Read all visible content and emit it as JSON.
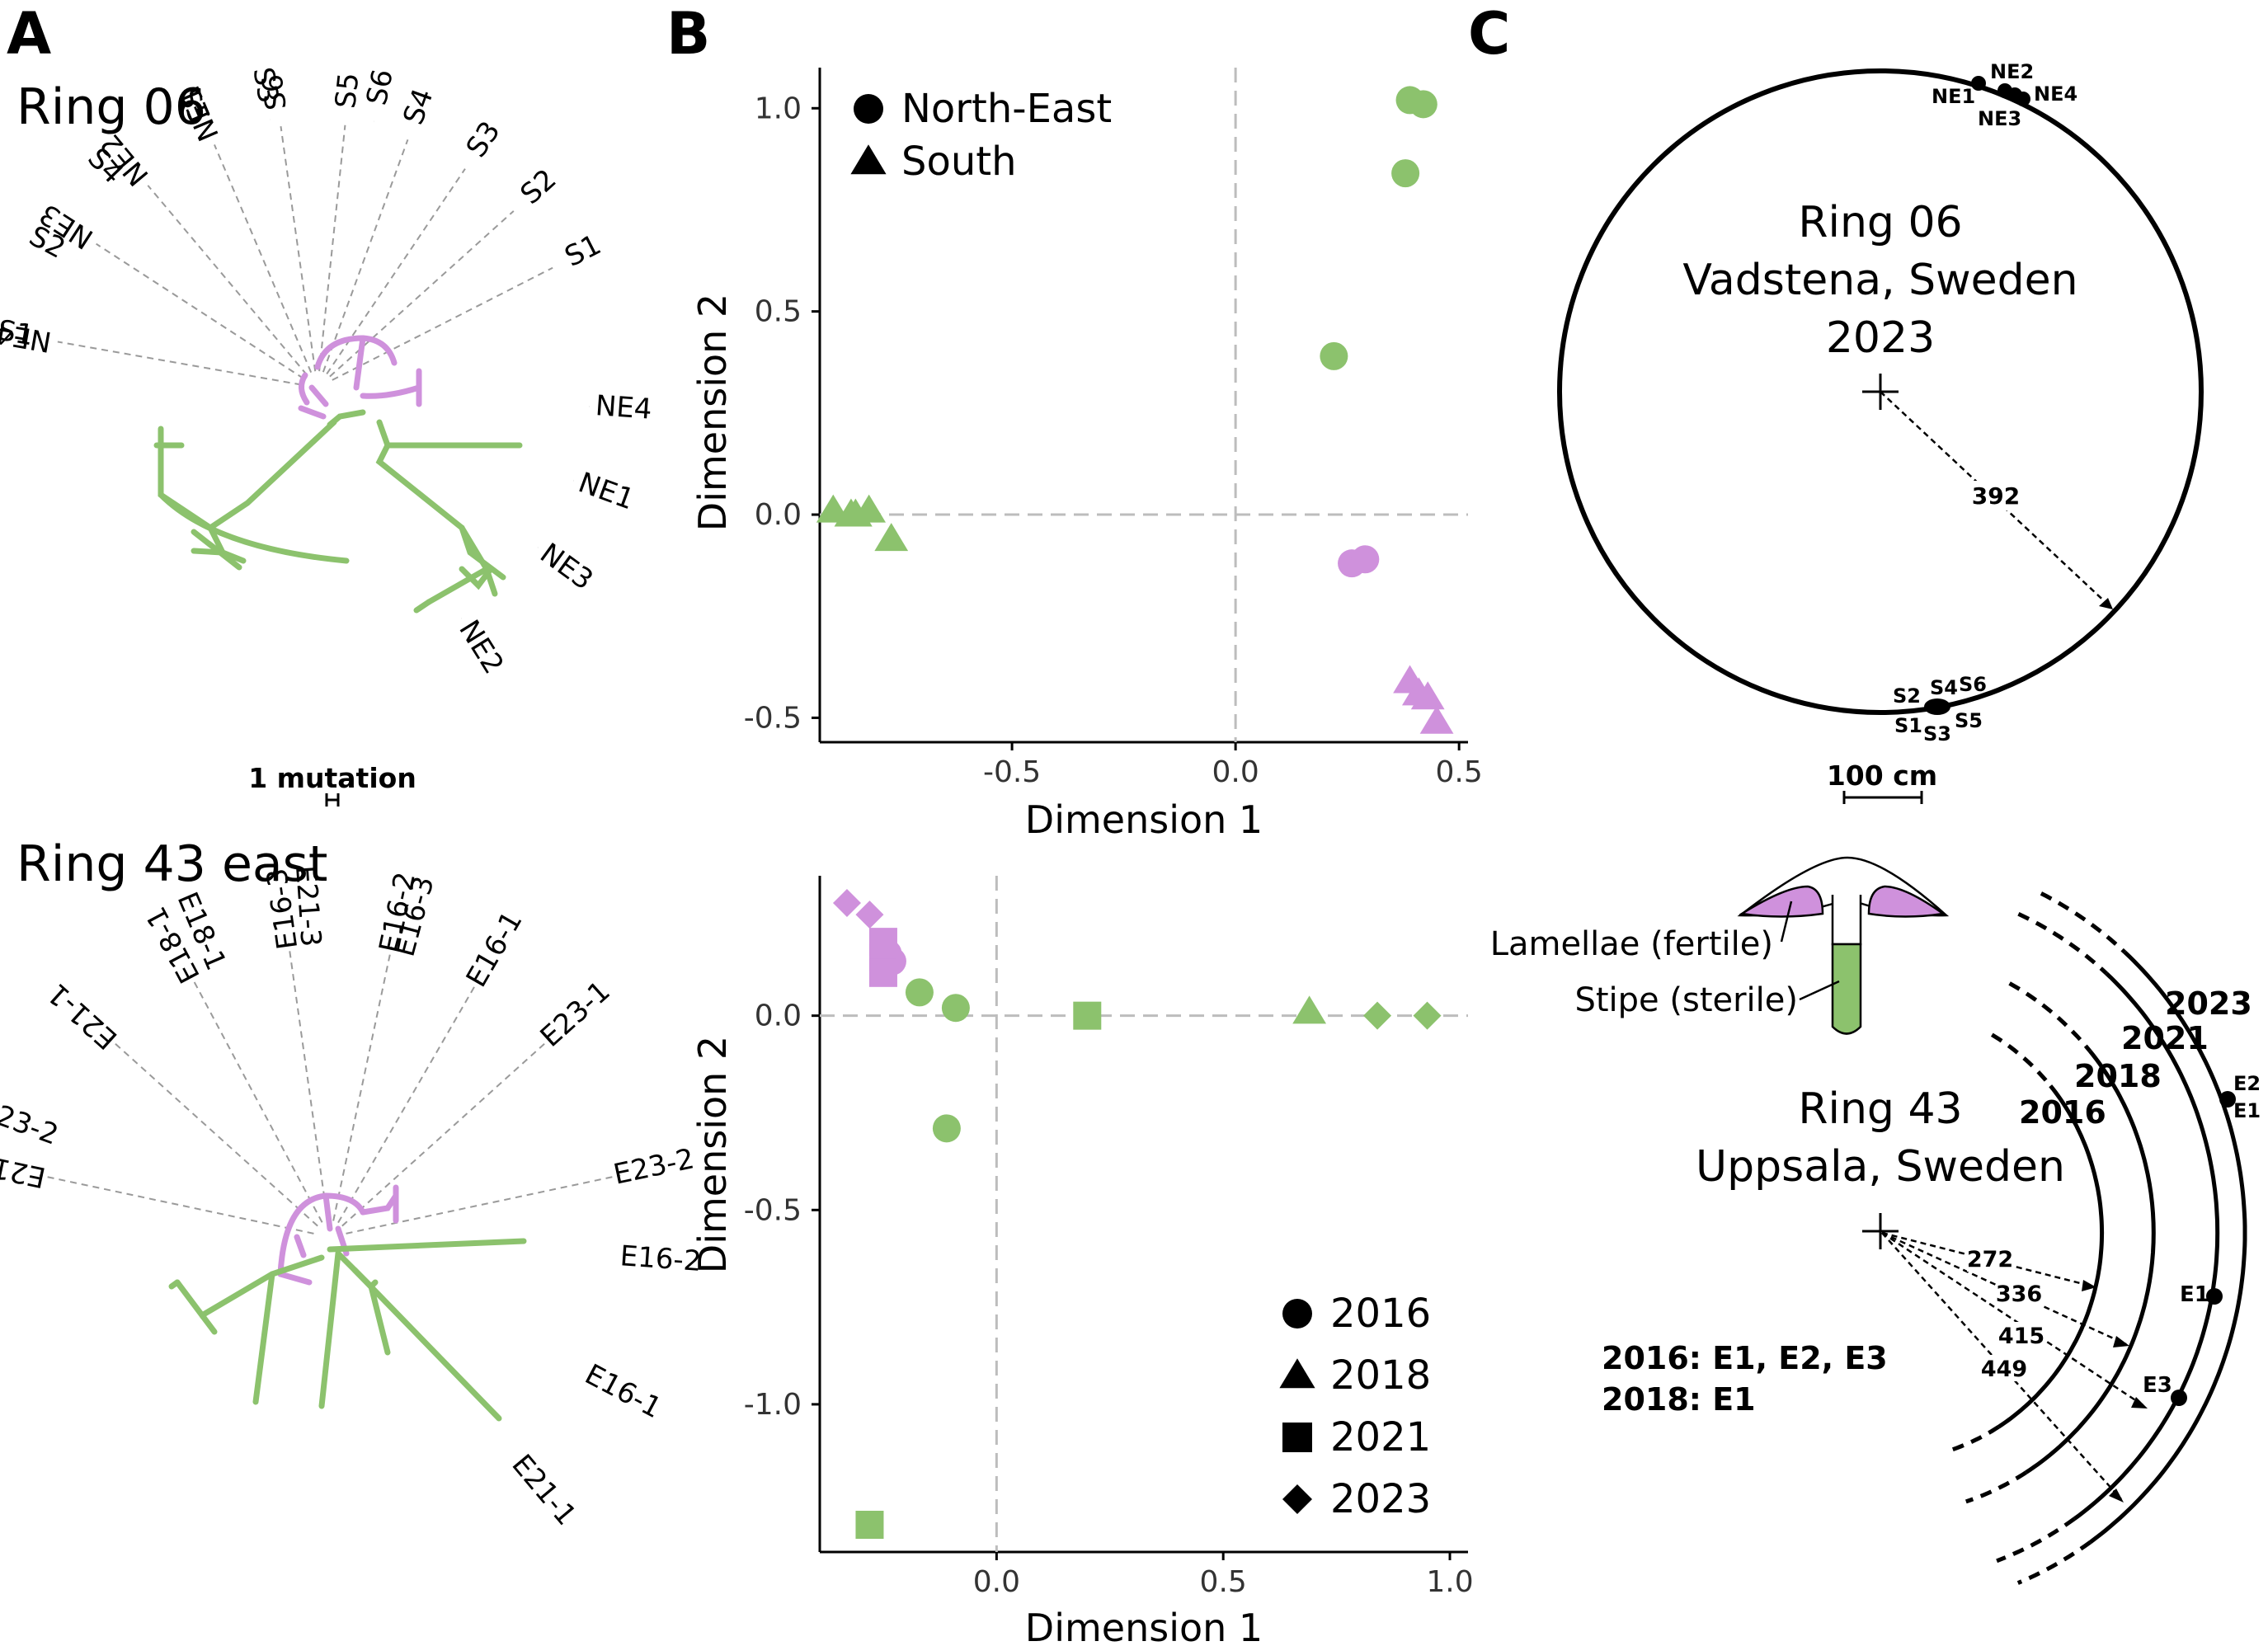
{
  "panel_letters": {
    "a": "A",
    "b": "B",
    "c": "C"
  },
  "colors": {
    "green": "#8cc26d",
    "purple": "#cf91dc",
    "black": "#000000",
    "grid": "#bdbdbd",
    "guide": "#9a9a9a"
  },
  "panel_a": {
    "ring06": {
      "title": "Ring 06",
      "tips_purple": [
        "NE1",
        "S6",
        "S5",
        "S4",
        "S3",
        "S2",
        "S1",
        "NE2",
        "NE3",
        "NE4"
      ],
      "tips_green": [
        "S1",
        "NE4",
        "S2",
        "NE1",
        "S4",
        "NE3",
        "S5",
        "S3",
        "S6",
        "NE2"
      ]
    },
    "scale_label": "1 mutation",
    "ring43": {
      "title": "Ring 43 east",
      "tips_purple": [
        "E18-1",
        "E16-3",
        "E16-2",
        "E16-1",
        "E23-1",
        "E21-1",
        "E21-3",
        "E23-2"
      ],
      "tips_green": [
        "E16-2",
        "E23-1",
        "E16-1",
        "E23-2",
        "E21-1",
        "E18-1",
        "E21-3",
        "E16-3"
      ]
    }
  },
  "panel_b": {
    "top": {
      "xlabel": "Dimension 1",
      "ylabel": "Dimension 2",
      "xticks": [
        "-0.5",
        "0.0",
        "0.5"
      ],
      "yticks": [
        "1.0",
        "0.5",
        "0.0",
        "-0.5"
      ],
      "legend": [
        {
          "shape": "circle",
          "label": "North-East"
        },
        {
          "shape": "triangle",
          "label": "South"
        }
      ]
    },
    "bottom": {
      "xlabel": "Dimension 1",
      "ylabel": "Dimension 2",
      "xticks": [
        "0.0",
        "0.5",
        "1.0"
      ],
      "yticks": [
        "0.0",
        "-0.5",
        "-1.0"
      ],
      "legend": [
        {
          "shape": "circle",
          "label": "2016"
        },
        {
          "shape": "triangle",
          "label": "2018"
        },
        {
          "shape": "square",
          "label": "2021"
        },
        {
          "shape": "diamond",
          "label": "2023"
        }
      ]
    }
  },
  "chart_data": [
    {
      "type": "scatter",
      "xlabel": "Dimension 1",
      "ylabel": "Dimension 2",
      "xlim": [
        -0.93,
        0.52
      ],
      "ylim": [
        -0.56,
        1.1
      ],
      "series": [
        {
          "name": "North-East",
          "color": "green",
          "shape": "circle",
          "points": [
            [
              0.39,
              1.02
            ],
            [
              0.42,
              1.01
            ],
            [
              0.38,
              0.84
            ],
            [
              0.22,
              0.39
            ]
          ]
        },
        {
          "name": "North-East",
          "color": "purple",
          "shape": "circle",
          "points": [
            [
              0.26,
              -0.12
            ],
            [
              0.29,
              -0.11
            ]
          ]
        },
        {
          "name": "South",
          "color": "green",
          "shape": "triangle",
          "points": [
            [
              -0.9,
              0.01
            ],
            [
              -0.86,
              0.0
            ],
            [
              -0.82,
              0.01
            ],
            [
              -0.85,
              0.0
            ],
            [
              -0.77,
              -0.06
            ]
          ]
        },
        {
          "name": "South",
          "color": "purple",
          "shape": "triangle",
          "points": [
            [
              0.39,
              -0.41
            ],
            [
              0.41,
              -0.44
            ],
            [
              0.43,
              -0.45
            ],
            [
              0.45,
              -0.51
            ]
          ]
        }
      ]
    },
    {
      "type": "scatter",
      "xlabel": "Dimension 1",
      "ylabel": "Dimension 2",
      "xlim": [
        -0.39,
        1.04
      ],
      "ylim": [
        -1.38,
        0.36
      ],
      "series": [
        {
          "name": "2016",
          "color": "green",
          "shape": "circle",
          "points": [
            [
              -0.17,
              0.06
            ],
            [
              -0.09,
              0.02
            ],
            [
              -0.11,
              -0.29
            ]
          ]
        },
        {
          "name": "2016",
          "color": "purple",
          "shape": "circle",
          "points": [
            [
              -0.23,
              0.14
            ],
            [
              -0.24,
              0.16
            ]
          ]
        },
        {
          "name": "2018",
          "color": "green",
          "shape": "triangle",
          "points": [
            [
              0.69,
              0.01
            ]
          ]
        },
        {
          "name": "2021",
          "color": "green",
          "shape": "square",
          "points": [
            [
              0.2,
              0.0
            ],
            [
              -0.28,
              -1.31
            ]
          ]
        },
        {
          "name": "2021",
          "color": "purple",
          "shape": "square",
          "points": [
            [
              -0.25,
              0.19
            ],
            [
              -0.25,
              0.15
            ],
            [
              -0.25,
              0.11
            ]
          ]
        },
        {
          "name": "2023",
          "color": "green",
          "shape": "diamond",
          "points": [
            [
              0.84,
              0.0
            ],
            [
              0.95,
              0.0
            ]
          ]
        },
        {
          "name": "2023",
          "color": "purple",
          "shape": "diamond",
          "points": [
            [
              -0.33,
              0.29
            ],
            [
              -0.28,
              0.26
            ]
          ]
        }
      ]
    }
  ],
  "panel_c": {
    "ring06": {
      "lines": [
        "Ring 06",
        "Vadstena, Sweden",
        "2023"
      ],
      "radius_label": "392",
      "ne_labels": [
        "NE1",
        "NE2",
        "NE3",
        "NE4"
      ],
      "s_labels": [
        "S2",
        "S4",
        "S6",
        "S1",
        "S3",
        "S5"
      ]
    },
    "scale_label": "100 cm",
    "mushroom": {
      "lamellae": "Lamellae (fertile)",
      "stipe": "Stipe (sterile)"
    },
    "ring43": {
      "lines": [
        "Ring 43",
        "Uppsala, Sweden"
      ],
      "years": [
        "2023",
        "2021",
        "2018",
        "2016"
      ],
      "radii": [
        "272",
        "336",
        "415",
        "449"
      ],
      "points": [
        "E2",
        "E1",
        "E1",
        "E3"
      ],
      "notes": [
        "2016: E1, E2, E3",
        "2018: E1"
      ]
    }
  }
}
